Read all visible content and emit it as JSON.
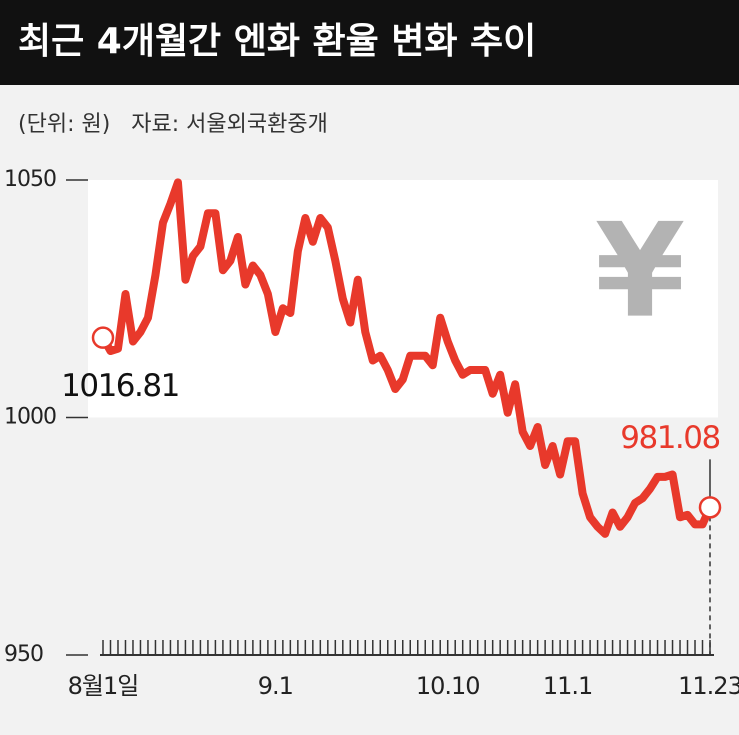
{
  "chart_data": {
    "type": "line",
    "title": "최근 4개월간 엔화 환율 변화 추이",
    "subtitle": "(단위: 원)   자료: 서울외국환중개",
    "watermark": "¥",
    "categories": [
      "8월1일",
      null,
      null,
      null,
      null,
      null,
      null,
      null,
      null,
      null,
      null,
      null,
      null,
      null,
      null,
      null,
      null,
      null,
      null,
      null,
      null,
      null,
      null,
      "9.1",
      null,
      null,
      null,
      null,
      null,
      null,
      null,
      null,
      null,
      null,
      null,
      null,
      null,
      null,
      null,
      null,
      null,
      null,
      null,
      null,
      null,
      null,
      "10.10",
      null,
      null,
      null,
      null,
      null,
      null,
      null,
      null,
      null,
      null,
      null,
      null,
      null,
      null,
      null,
      "11.1",
      null,
      null,
      null,
      null,
      null,
      null,
      null,
      null,
      null,
      null,
      null,
      null,
      null,
      null,
      null,
      null,
      null,
      null,
      "11.23"
    ],
    "series": [
      {
        "name": "엔화 환율",
        "color": "#e8392b",
        "values": [
          1016.81,
          1014,
          1014.5,
          1026,
          1016,
          1018,
          1021,
          1030,
          1041,
          1045,
          1049.5,
          1029,
          1034,
          1036,
          1043,
          1043,
          1031,
          1033,
          1038,
          1028,
          1032,
          1030,
          1026,
          1018,
          1023,
          1022,
          1035,
          1042,
          1037,
          1042,
          1040,
          1033,
          1025,
          1020,
          1029,
          1018,
          1012,
          1013,
          1010,
          1006,
          1008,
          1013,
          1013,
          1013,
          1011,
          1021,
          1016,
          1012,
          1009,
          1010,
          1010,
          1010,
          1005,
          1009,
          1001,
          1007,
          997,
          994,
          998,
          990,
          994,
          988,
          995,
          995,
          984,
          979,
          977,
          975.5,
          980,
          977,
          979,
          982,
          983,
          985,
          987.5,
          987.5,
          988,
          979,
          979.5,
          977.5,
          977.5,
          981.08
        ]
      }
    ],
    "ylim": [
      950,
      1050
    ],
    "yticks": [
      950,
      1000,
      1050
    ]
  }
}
